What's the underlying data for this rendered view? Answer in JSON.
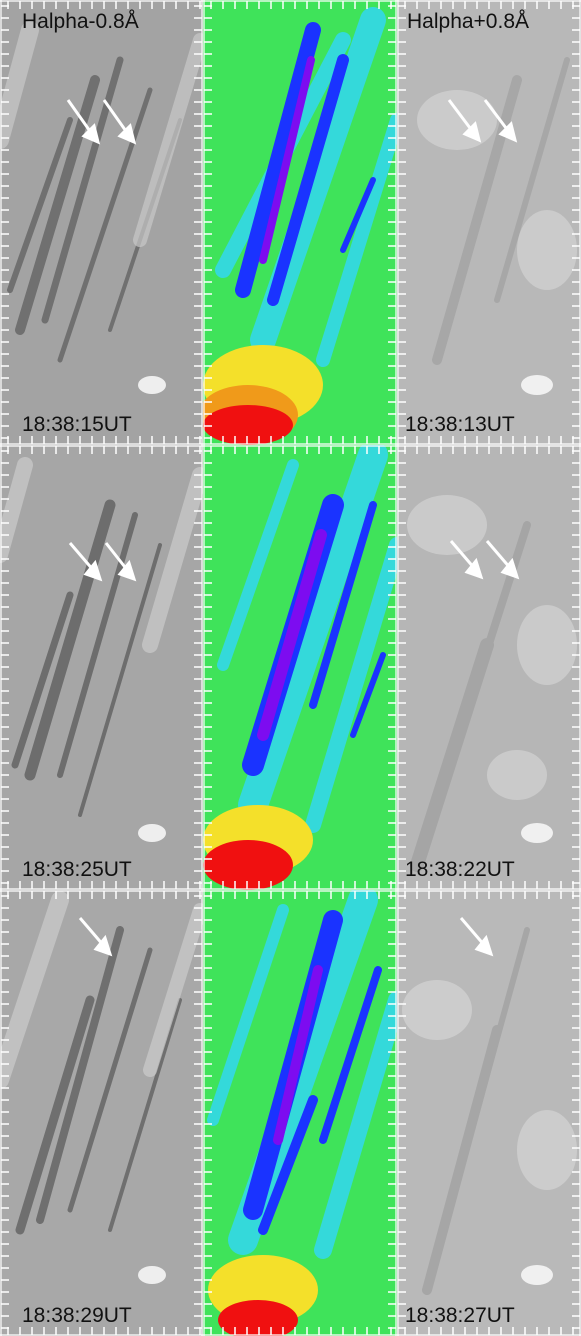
{
  "figure": {
    "left_title": "Halpha-0.8Å",
    "right_title": "Halpha+0.8Å",
    "rows": [
      {
        "left_time": "18:38:15UT",
        "right_time": "18:38:13UT",
        "left_arrows": 2,
        "right_arrows": 2
      },
      {
        "left_time": "18:38:25UT",
        "right_time": "18:38:22UT",
        "left_arrows": 2,
        "right_arrows": 2
      },
      {
        "left_time": "18:38:29UT",
        "right_time": "18:38:27UT",
        "left_arrows": 1,
        "right_arrows": 1
      }
    ],
    "colors": {
      "tick": "#ffffff",
      "arrow": "#ffffff",
      "gray_left": "#9a9a9a",
      "gray_right": "#b4b4b4",
      "map_green": "#3fe35a",
      "map_cyan": "#33d8e8",
      "map_blue": "#1a33ff",
      "map_violet": "#7d0cf0",
      "map_yellow": "#f4e02a",
      "map_red": "#f01010"
    }
  }
}
